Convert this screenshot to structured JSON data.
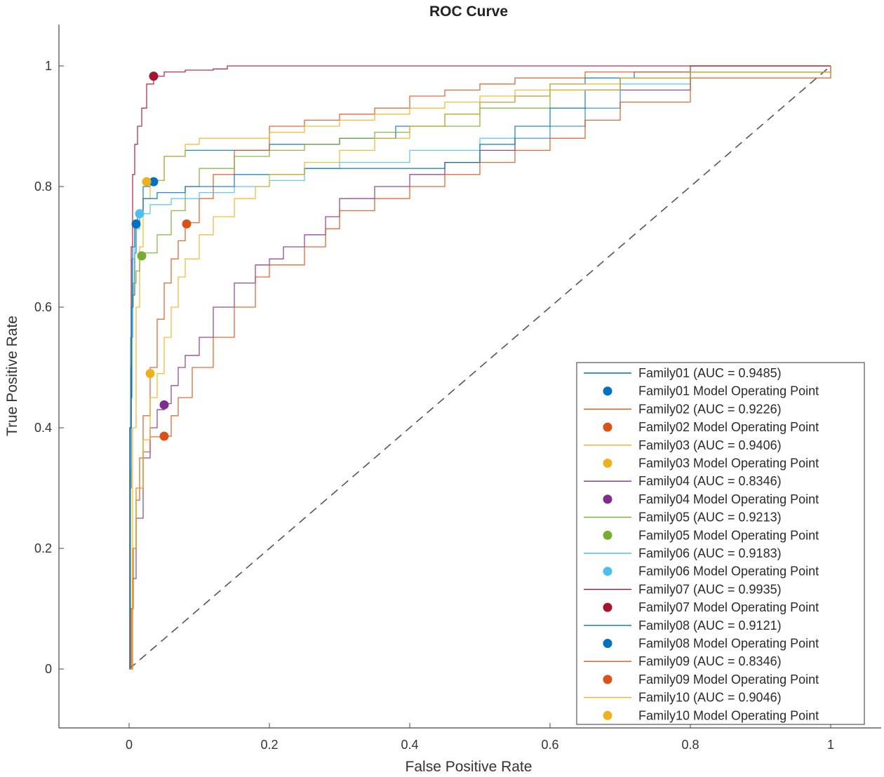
{
  "chart_data": {
    "type": "line",
    "title": "ROC Curve",
    "xlabel": "False Positive Rate",
    "ylabel": "True Positive Rate",
    "xlim": [
      -0.1,
      1.07
    ],
    "ylim": [
      -0.1,
      1.07
    ],
    "xticks": [
      0,
      0.2,
      0.4,
      0.6,
      0.8,
      1
    ],
    "yticks": [
      0,
      0.2,
      0.4,
      0.6,
      0.8,
      1
    ],
    "xtick_labels": [
      "0",
      "0.2",
      "0.4",
      "0.6",
      "0.8",
      "1"
    ],
    "ytick_labels": [
      "0",
      "0.2",
      "0.4",
      "0.6",
      "0.8",
      "1"
    ],
    "grid": false,
    "legend_position": "bottom-right",
    "diagonal": {
      "x": [
        0,
        1
      ],
      "y": [
        0,
        1
      ],
      "style": "dashed",
      "color": "#555555"
    },
    "series": [
      {
        "name": "Family01 (AUC = 0.9485)",
        "point_name": "Family01 Model Operating Point",
        "color": "#0072BD",
        "x": [
          0,
          0.002,
          0.003,
          0.004,
          0.005,
          0.008,
          0.01,
          0.015,
          0.02,
          0.03,
          0.05,
          0.08,
          0.12,
          0.2,
          0.3,
          0.38,
          0.45,
          0.5,
          0.55,
          0.6,
          0.65,
          0.72,
          0.8,
          0.9,
          1
        ],
        "y": [
          0,
          0.3,
          0.45,
          0.55,
          0.62,
          0.69,
          0.74,
          0.76,
          0.8,
          0.81,
          0.85,
          0.86,
          0.86,
          0.87,
          0.88,
          0.9,
          0.92,
          0.94,
          0.95,
          0.97,
          0.98,
          0.99,
          1,
          1,
          1
        ],
        "operating_point": [
          0.035,
          0.808
        ]
      },
      {
        "name": "Family02 (AUC = 0.9226)",
        "point_name": "Family02 Model Operating Point",
        "color": "#D95319",
        "x": [
          0,
          0.003,
          0.006,
          0.01,
          0.015,
          0.02,
          0.03,
          0.04,
          0.05,
          0.06,
          0.07,
          0.08,
          0.1,
          0.12,
          0.15,
          0.2,
          0.25,
          0.3,
          0.35,
          0.4,
          0.45,
          0.5,
          0.55,
          0.6,
          0.65,
          0.7,
          0.8,
          0.9,
          1
        ],
        "y": [
          0,
          0.1,
          0.2,
          0.28,
          0.35,
          0.42,
          0.5,
          0.58,
          0.64,
          0.68,
          0.71,
          0.74,
          0.78,
          0.82,
          0.86,
          0.9,
          0.91,
          0.92,
          0.93,
          0.95,
          0.96,
          0.97,
          0.98,
          0.98,
          0.99,
          0.99,
          1,
          1,
          1
        ],
        "operating_point": [
          0.082,
          0.738
        ]
      },
      {
        "name": "Family03 (AUC = 0.9406)",
        "point_name": "Family03 Model Operating Point",
        "color": "#EDB120",
        "x": [
          0,
          0.005,
          0.01,
          0.015,
          0.02,
          0.03,
          0.05,
          0.08,
          0.1,
          0.15,
          0.2,
          0.25,
          0.3,
          0.35,
          0.4,
          0.45,
          0.5,
          0.55,
          0.6,
          0.7,
          0.8,
          1
        ],
        "y": [
          0,
          0.4,
          0.6,
          0.7,
          0.78,
          0.81,
          0.85,
          0.87,
          0.88,
          0.88,
          0.89,
          0.9,
          0.91,
          0.92,
          0.93,
          0.94,
          0.95,
          0.96,
          0.97,
          0.98,
          0.99,
          1
        ],
        "operating_point": [
          0.025,
          0.808
        ]
      },
      {
        "name": "Family04 (AUC = 0.8346)",
        "point_name": "Family04 Model Operating Point",
        "color": "#7E2F8E",
        "x": [
          0,
          0.005,
          0.01,
          0.02,
          0.03,
          0.04,
          0.05,
          0.06,
          0.07,
          0.08,
          0.1,
          0.12,
          0.15,
          0.18,
          0.2,
          0.22,
          0.25,
          0.28,
          0.3,
          0.35,
          0.4,
          0.45,
          0.5,
          0.55,
          0.6,
          0.65,
          0.7,
          0.8,
          1
        ],
        "y": [
          0,
          0.15,
          0.25,
          0.35,
          0.4,
          0.43,
          0.44,
          0.47,
          0.5,
          0.52,
          0.55,
          0.6,
          0.64,
          0.67,
          0.68,
          0.7,
          0.72,
          0.75,
          0.78,
          0.8,
          0.82,
          0.84,
          0.86,
          0.88,
          0.9,
          0.93,
          0.96,
          0.99,
          1
        ],
        "operating_point": [
          0.05,
          0.438
        ]
      },
      {
        "name": "Family05 (AUC = 0.9213)",
        "point_name": "Family05 Model Operating Point",
        "color": "#77AC30",
        "x": [
          0,
          0.002,
          0.004,
          0.006,
          0.01,
          0.015,
          0.02,
          0.04,
          0.06,
          0.08,
          0.1,
          0.15,
          0.2,
          0.25,
          0.3,
          0.35,
          0.4,
          0.5,
          0.6,
          0.7,
          0.8,
          1
        ],
        "y": [
          0,
          0.5,
          0.6,
          0.64,
          0.66,
          0.68,
          0.69,
          0.72,
          0.76,
          0.8,
          0.83,
          0.85,
          0.86,
          0.87,
          0.88,
          0.89,
          0.9,
          0.93,
          0.96,
          0.98,
          0.99,
          1
        ],
        "operating_point": [
          0.018,
          0.685
        ]
      },
      {
        "name": "Family06 (AUC = 0.9183)",
        "point_name": "Family06 Model Operating Point",
        "color": "#4DBEEE",
        "x": [
          0,
          0.001,
          0.002,
          0.004,
          0.008,
          0.015,
          0.03,
          0.06,
          0.1,
          0.15,
          0.2,
          0.25,
          0.3,
          0.4,
          0.5,
          0.6,
          0.65,
          0.7,
          0.8,
          1
        ],
        "y": [
          0,
          0.33,
          0.55,
          0.68,
          0.73,
          0.755,
          0.77,
          0.78,
          0.79,
          0.8,
          0.81,
          0.83,
          0.84,
          0.86,
          0.88,
          0.9,
          0.93,
          0.97,
          0.99,
          1
        ],
        "operating_point": [
          0.015,
          0.755
        ]
      },
      {
        "name": "Family07 (AUC = 0.9935)",
        "point_name": "Family07 Model Operating Point",
        "color": "#A2142F",
        "x": [
          0,
          0.001,
          0.003,
          0.005,
          0.008,
          0.012,
          0.018,
          0.025,
          0.035,
          0.05,
          0.08,
          0.12,
          0.14,
          0.2,
          0.4,
          0.6,
          0.8,
          1
        ],
        "y": [
          0,
          0.4,
          0.7,
          0.82,
          0.87,
          0.9,
          0.93,
          0.97,
          0.983,
          0.99,
          0.993,
          0.995,
          1,
          1,
          1,
          1,
          1,
          1
        ],
        "operating_point": [
          0.035,
          0.983
        ]
      },
      {
        "name": "Family08 (AUC = 0.9121)",
        "point_name": "Family08 Model Operating Point",
        "color": "#0072BD",
        "x": [
          0,
          0.001,
          0.003,
          0.005,
          0.008,
          0.012,
          0.02,
          0.04,
          0.08,
          0.15,
          0.25,
          0.35,
          0.45,
          0.5,
          0.55,
          0.6,
          0.65,
          0.7,
          0.8,
          1
        ],
        "y": [
          0,
          0.4,
          0.6,
          0.7,
          0.738,
          0.76,
          0.78,
          0.79,
          0.8,
          0.82,
          0.83,
          0.83,
          0.84,
          0.87,
          0.9,
          0.93,
          0.96,
          0.98,
          0.99,
          1
        ],
        "operating_point": [
          0.01,
          0.738
        ]
      },
      {
        "name": "Family09 (AUC = 0.8346)",
        "point_name": "Family09 Model Operating Point",
        "color": "#D95319",
        "x": [
          0,
          0.003,
          0.005,
          0.01,
          0.02,
          0.03,
          0.04,
          0.05,
          0.06,
          0.07,
          0.09,
          0.12,
          0.15,
          0.18,
          0.2,
          0.25,
          0.28,
          0.3,
          0.35,
          0.4,
          0.45,
          0.5,
          0.55,
          0.6,
          0.65,
          0.7,
          0.8,
          1
        ],
        "y": [
          0,
          0.1,
          0.2,
          0.3,
          0.36,
          0.385,
          0.385,
          0.386,
          0.42,
          0.45,
          0.5,
          0.55,
          0.6,
          0.65,
          0.67,
          0.7,
          0.73,
          0.76,
          0.78,
          0.8,
          0.82,
          0.84,
          0.86,
          0.88,
          0.91,
          0.94,
          0.98,
          1
        ],
        "operating_point": [
          0.05,
          0.386
        ]
      },
      {
        "name": "Family10 (AUC = 0.9046)",
        "point_name": "Family10 Model Operating Point",
        "color": "#EDB120",
        "x": [
          0,
          0.005,
          0.01,
          0.02,
          0.03,
          0.04,
          0.05,
          0.06,
          0.07,
          0.08,
          0.1,
          0.12,
          0.15,
          0.18,
          0.2,
          0.25,
          0.3,
          0.35,
          0.4,
          0.45,
          0.5,
          0.55,
          0.6,
          0.7,
          0.8,
          1
        ],
        "y": [
          0,
          0.2,
          0.3,
          0.38,
          0.45,
          0.49,
          0.55,
          0.6,
          0.65,
          0.68,
          0.72,
          0.75,
          0.78,
          0.8,
          0.82,
          0.84,
          0.86,
          0.88,
          0.9,
          0.92,
          0.94,
          0.95,
          0.96,
          0.98,
          0.99,
          1
        ],
        "operating_point": [
          0.03,
          0.49
        ]
      }
    ]
  }
}
